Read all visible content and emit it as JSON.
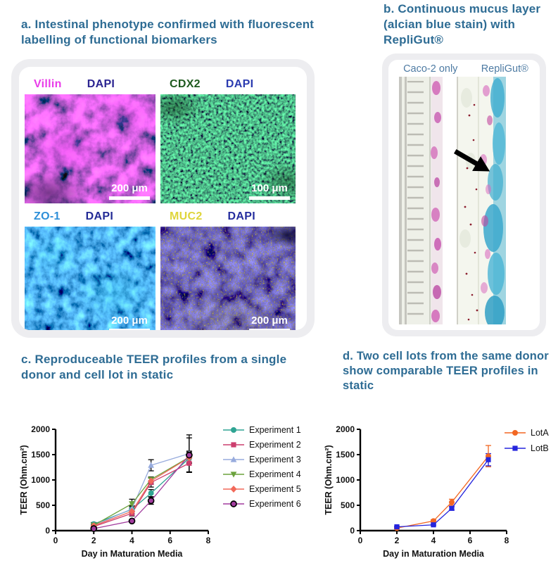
{
  "panel_a": {
    "title": "a. Intestinal phenotype confirmed with fluorescent labelling of functional biomarkers",
    "tiles": [
      {
        "marker": "Villin",
        "marker_color": "#e93be9",
        "counterstain": "DAPI",
        "counterstain_color": "#2b2491",
        "scale_bar": "200 μm"
      },
      {
        "marker": "CDX2",
        "marker_color": "#1f5a1f",
        "counterstain": "DAPI",
        "counterstain_color": "#2b3bb0",
        "scale_bar": "100 μm"
      },
      {
        "marker": "ZO-1",
        "marker_color": "#2e8fd8",
        "counterstain": "DAPI",
        "counterstain_color": "#232b96",
        "scale_bar": "200 μm"
      },
      {
        "marker": "MUC2",
        "marker_color": "#dfd53b",
        "counterstain": "DAPI",
        "counterstain_color": "#252d9e",
        "scale_bar": "200 μm"
      }
    ]
  },
  "panel_b": {
    "title": "b. Continuous mucus layer (alcian blue stain) with RepliGut®",
    "columns": [
      "Caco-2 only",
      "RepliGut®"
    ]
  },
  "panel_c": {
    "title": "c. Reproduceable TEER profiles from a single donor and cell lot in static"
  },
  "panel_d": {
    "title": "d. Two cell lots from the same donor show comparable TEER profiles in static"
  },
  "chart_data": [
    {
      "id": "chart-c",
      "type": "line",
      "x": [
        2,
        4,
        5,
        7
      ],
      "xlabel": "Day in Maturation Media",
      "ylabel": "TEER (Ohm.cm²)",
      "xlim": [
        0,
        8
      ],
      "ylim": [
        0,
        2000
      ],
      "xticks": [
        0,
        2,
        4,
        6,
        8
      ],
      "yticks": [
        0,
        500,
        1000,
        1500,
        2000
      ],
      "legend_position": "right",
      "grid": false,
      "error_bar_color": "#000000",
      "series": [
        {
          "name": "Experiment 1",
          "color": "#2fa493",
          "marker": "circle",
          "values": [
            130,
            420,
            740,
            1430
          ],
          "errors": [
            30,
            50,
            70,
            90
          ]
        },
        {
          "name": "Experiment 2",
          "color": "#cc3e6e",
          "marker": "square",
          "values": [
            80,
            340,
            950,
            1330
          ],
          "errors": [
            20,
            50,
            90,
            170
          ]
        },
        {
          "name": "Experiment 3",
          "color": "#97abdd",
          "marker": "triangle-up",
          "values": [
            100,
            430,
            1290,
            1520
          ],
          "errors": [
            20,
            60,
            110,
            370
          ]
        },
        {
          "name": "Experiment 4",
          "color": "#6ba23c",
          "marker": "triangle-down",
          "values": [
            105,
            530,
            1010,
            1450
          ],
          "errors": [
            20,
            90,
            50,
            120
          ]
        },
        {
          "name": "Experiment 5",
          "color": "#f2695a",
          "marker": "diamond",
          "values": [
            95,
            380,
            980,
            1440
          ],
          "errors": [
            20,
            50,
            60,
            110
          ]
        },
        {
          "name": "Experiment 6",
          "color": "#a23c9e",
          "marker": "circle-outline",
          "values": [
            40,
            190,
            590,
            1490
          ],
          "errors": [
            10,
            25,
            70,
            340
          ]
        }
      ]
    },
    {
      "id": "chart-d",
      "type": "line",
      "x": [
        2,
        4,
        5,
        7
      ],
      "xlabel": "Day in Maturation Media",
      "ylabel": "TEER (Ohm.cm²)",
      "xlim": [
        0,
        8
      ],
      "ylim": [
        0,
        2000
      ],
      "xticks": [
        0,
        2,
        4,
        6,
        8
      ],
      "yticks": [
        0,
        500,
        1000,
        1500,
        2000
      ],
      "legend_position": "right",
      "grid": false,
      "error_bar_color": "series",
      "series": [
        {
          "name": "LotA",
          "color": "#f26722",
          "marker": "circle",
          "values": [
            50,
            190,
            560,
            1470
          ],
          "errors": [
            10,
            25,
            60,
            210
          ]
        },
        {
          "name": "LotB",
          "color": "#2525dd",
          "marker": "square",
          "values": [
            75,
            115,
            440,
            1400
          ],
          "errors": [
            10,
            15,
            35,
            120
          ]
        }
      ]
    }
  ]
}
